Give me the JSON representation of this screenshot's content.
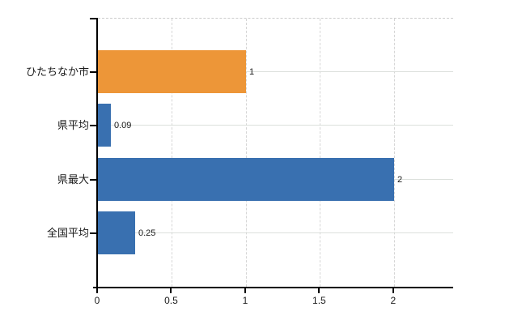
{
  "chart_data": {
    "type": "bar",
    "orientation": "horizontal",
    "title": "",
    "xlabel": "",
    "ylabel": "",
    "categories": [
      "ひたちなか市",
      "県平均",
      "県最大",
      "全国平均"
    ],
    "values": [
      1,
      0.09,
      2,
      0.25
    ],
    "value_labels": [
      "1",
      "0.09",
      "2",
      "0.25"
    ],
    "bar_colors": [
      "#ED9638",
      "#3970B0",
      "#3970B0",
      "#3970B0"
    ],
    "highlight_color": "#ED9638",
    "base_color": "#3970B0",
    "xlim": [
      0,
      2.4
    ],
    "x_ticks": [
      0,
      0.5,
      1,
      1.5,
      2
    ],
    "x_tick_labels": [
      "0",
      "0.5",
      "1",
      "1.5",
      "2"
    ],
    "grid": true,
    "legend": false,
    "colors": {
      "background": "#ffffff",
      "axis": "#000000",
      "text": "#1a1a1a",
      "grid_horizontal": "#dce0dc",
      "grid_vertical": "#d6d6d6",
      "plot_border_top": "#cccccc"
    }
  }
}
